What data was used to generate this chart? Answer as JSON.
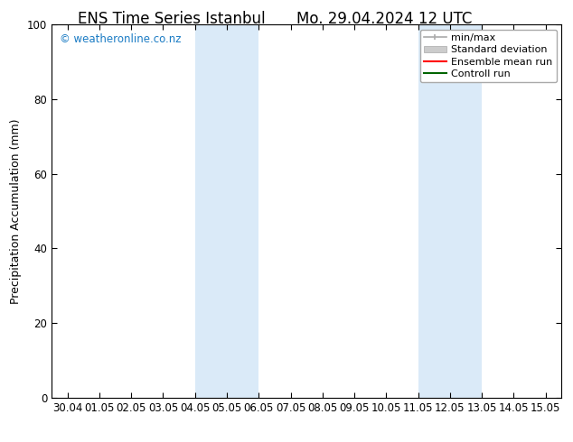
{
  "title_left": "ENS Time Series Istanbul",
  "title_right": "Mo. 29.04.2024 12 UTC",
  "ylabel": "Precipitation Accumulation (mm)",
  "ylim": [
    0,
    100
  ],
  "yticks": [
    0,
    20,
    40,
    60,
    80,
    100
  ],
  "x_tick_labels": [
    "30.04",
    "01.05",
    "02.05",
    "03.05",
    "04.05",
    "05.05",
    "06.05",
    "07.05",
    "08.05",
    "09.05",
    "10.05",
    "11.05",
    "12.05",
    "13.05",
    "14.05",
    "15.05"
  ],
  "x_tick_positions": [
    0,
    1,
    2,
    3,
    4,
    5,
    6,
    7,
    8,
    9,
    10,
    11,
    12,
    13,
    14,
    15
  ],
  "xlim": [
    -0.5,
    15.5
  ],
  "shaded_regions": [
    {
      "x_start": 4.0,
      "x_end": 5.0
    },
    {
      "x_start": 5.0,
      "x_end": 6.0
    },
    {
      "x_start": 11.0,
      "x_end": 12.0
    },
    {
      "x_start": 12.0,
      "x_end": 13.0
    }
  ],
  "shaded_color": "#daeaf8",
  "watermark_text": "© weatheronline.co.nz",
  "watermark_color": "#1a7bc4",
  "background_color": "#ffffff",
  "title_fontsize": 12,
  "tick_label_fontsize": 8.5,
  "ylabel_fontsize": 9,
  "legend_fontsize": 8
}
